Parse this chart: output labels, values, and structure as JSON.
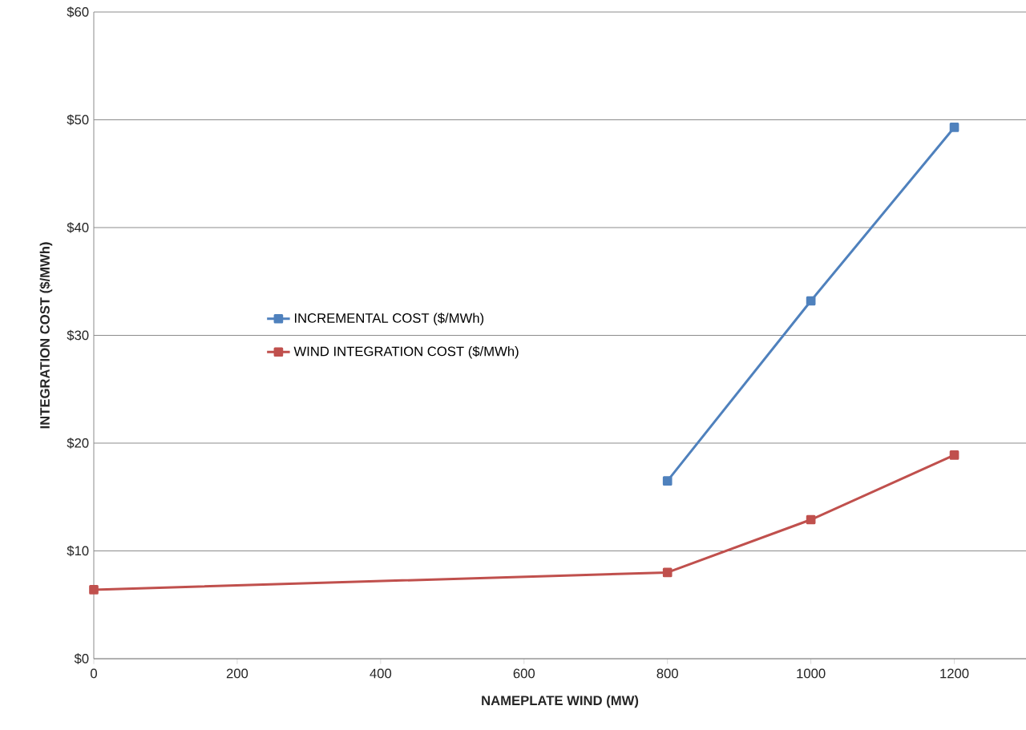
{
  "chart_data": {
    "type": "line",
    "xlabel": "NAMEPLATE WIND (MW)",
    "ylabel": "INTEGRATION COST ($/MWh)",
    "x": [
      0,
      800,
      1000,
      1200
    ],
    "series": [
      {
        "name": "INCREMENTAL COST ($/MWh)",
        "color": "#4f81bd",
        "values": [
          null,
          16.5,
          33.2,
          49.3
        ]
      },
      {
        "name": "WIND INTEGRATION COST ($/MWh)",
        "color": "#c0504d",
        "values": [
          6.4,
          8.0,
          12.9,
          18.9
        ]
      }
    ],
    "xlim": [
      0,
      1300
    ],
    "xticks": [
      0,
      200,
      400,
      600,
      800,
      1000,
      1200
    ],
    "ylim": [
      0,
      60
    ],
    "yticks": [
      {
        "value": 0,
        "label": "$0"
      },
      {
        "value": 10,
        "label": "$10"
      },
      {
        "value": 20,
        "label": "$20"
      },
      {
        "value": 30,
        "label": "$30"
      },
      {
        "value": 40,
        "label": "$40"
      },
      {
        "value": 50,
        "label": "$50"
      },
      {
        "value": 60,
        "label": "$60"
      }
    ],
    "grid": "y",
    "legend": "center left",
    "marker": "square",
    "line_style": "solid"
  }
}
